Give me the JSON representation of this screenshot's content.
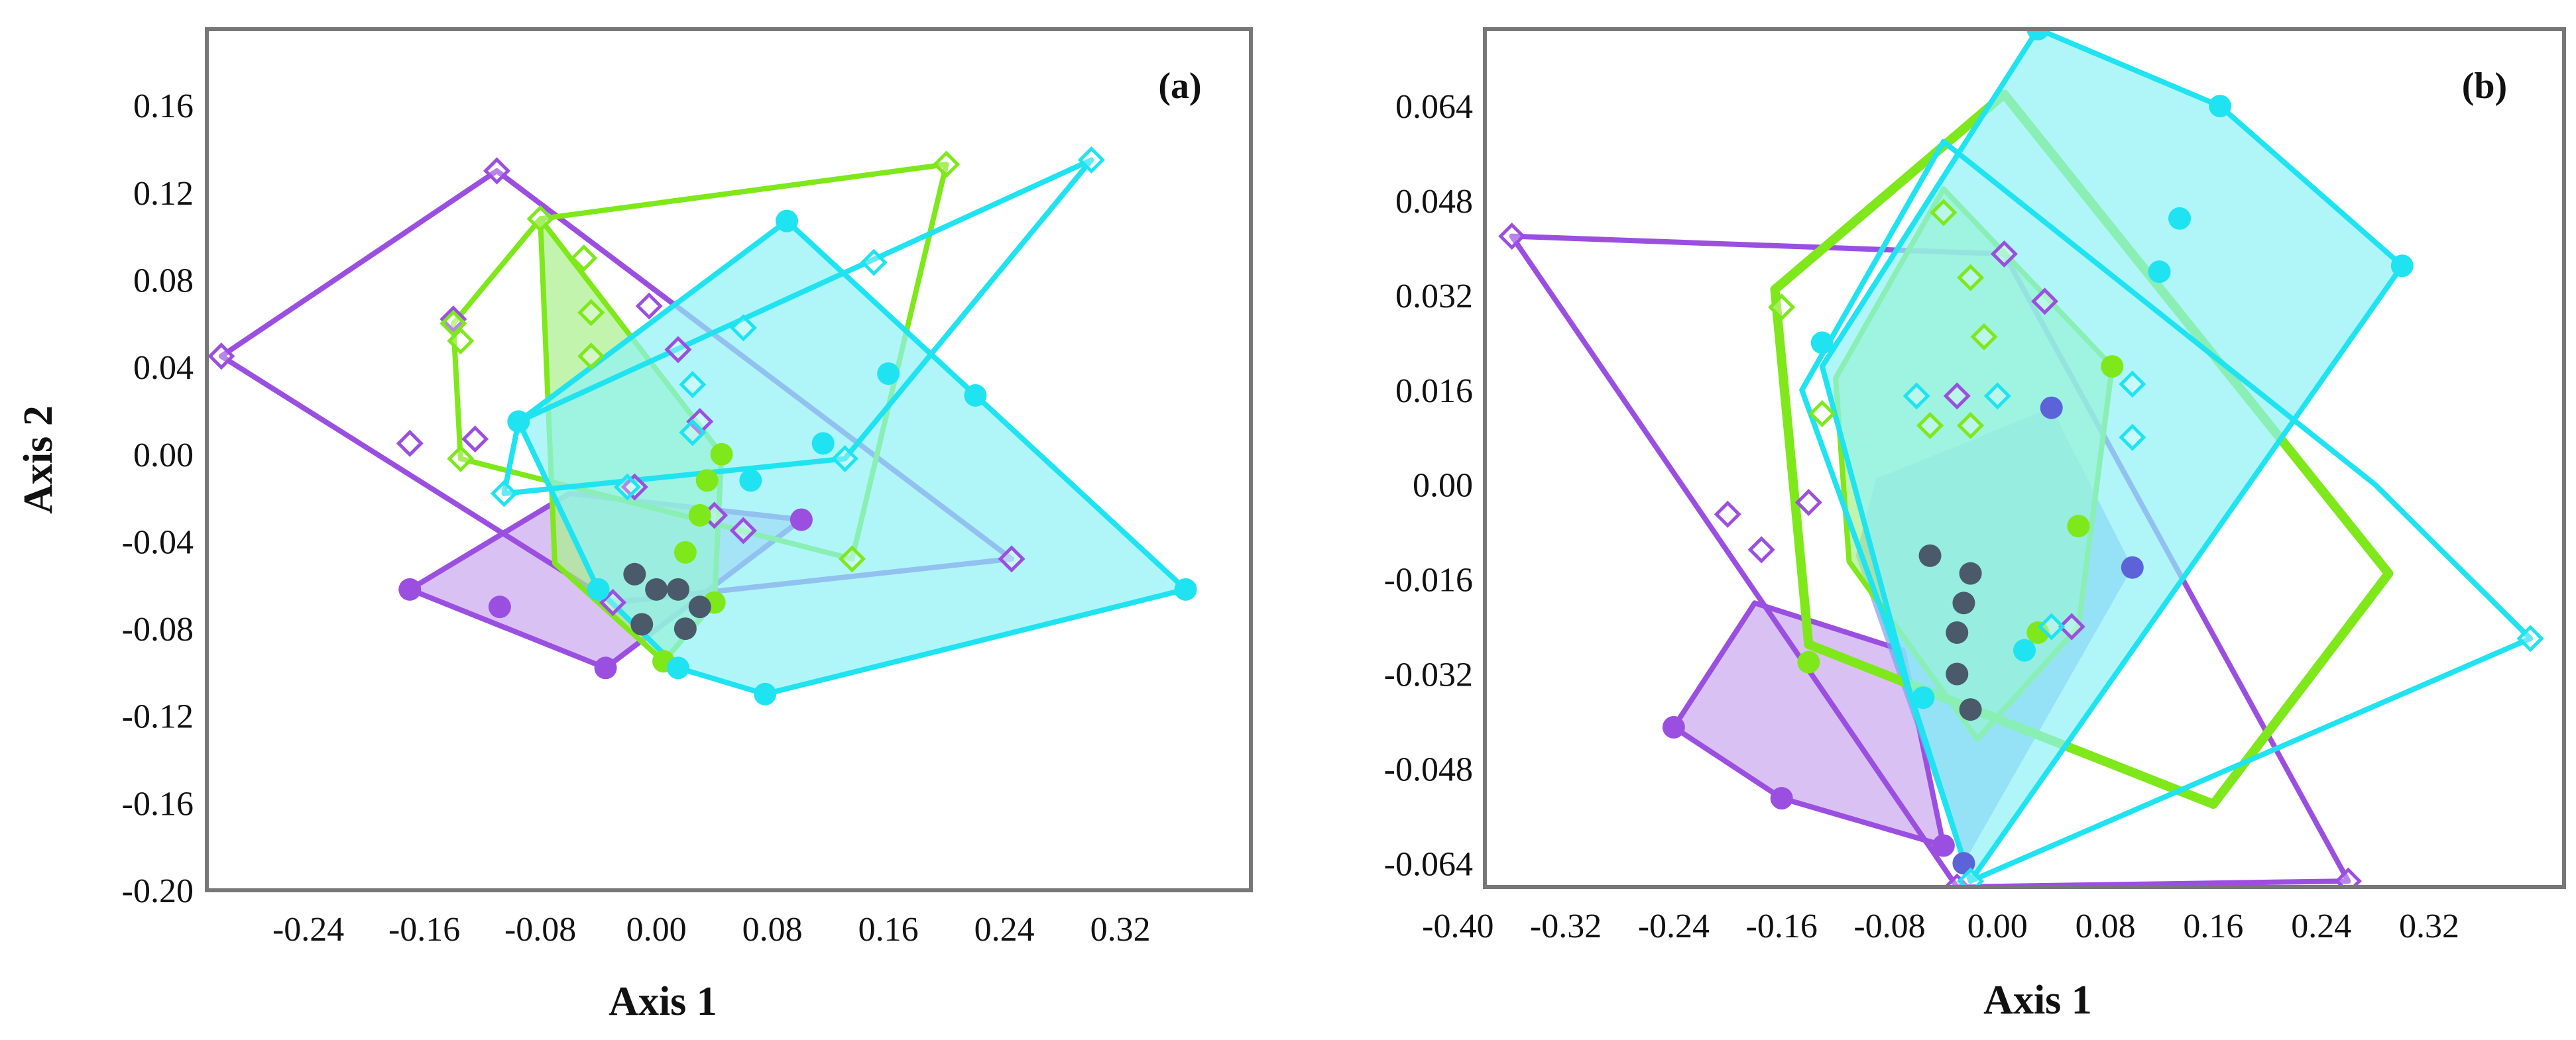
{
  "colors": {
    "purple": "#9b4fe0",
    "purple_fill": "#cba6f0",
    "green": "#7ee81a",
    "green_fill": "#a9ef8c",
    "cyan": "#1fe3f0",
    "cyan_fill": "#8ff2f7",
    "blue_fill": "#7f9ff0",
    "blue_point": "#5c63d8",
    "gray_point": "#4a5a6a"
  },
  "chart_data": [
    {
      "type": "scatter",
      "panel_label": "(a)",
      "xlabel": "Axis 1",
      "ylabel": "Axis 2",
      "xlim": [
        -0.31,
        0.41
      ],
      "ylim": [
        -0.2,
        0.195
      ],
      "xticks": [
        -0.24,
        -0.16,
        -0.08,
        0.0,
        0.08,
        0.16,
        0.24,
        0.32
      ],
      "xtick_labels": [
        "-0.24",
        "-0.16",
        "-0.08",
        "0.00",
        "0.08",
        "0.16",
        "0.24",
        "0.32"
      ],
      "yticks": [
        -0.2,
        -0.16,
        -0.12,
        -0.08,
        -0.04,
        0.0,
        0.04,
        0.08,
        0.12,
        0.16
      ],
      "ytick_labels": [
        "-0.20",
        "-0.16",
        "-0.12",
        "-0.08",
        "-0.04",
        "0.00",
        "0.04",
        "0.08",
        "0.12",
        "0.16"
      ],
      "series": [
        {
          "color": "purple",
          "fill": "purple_fill",
          "filled": true,
          "marker": "circle",
          "stroke_width": 8,
          "hull": [
            [
              -0.17,
              -0.062
            ],
            [
              -0.035,
              -0.098
            ],
            [
              0.1,
              -0.03
            ],
            [
              -0.06,
              -0.018
            ]
          ],
          "points": [
            [
              -0.17,
              -0.062
            ],
            [
              -0.108,
              -0.07
            ],
            [
              -0.035,
              -0.098
            ],
            [
              0.1,
              -0.03
            ]
          ]
        },
        {
          "color": "purple",
          "filled": false,
          "marker": "diamond",
          "stroke_width": 8,
          "hull": [
            [
              -0.3,
              0.045
            ],
            [
              -0.11,
              0.13
            ],
            [
              0.245,
              -0.048
            ],
            [
              -0.03,
              -0.068
            ]
          ],
          "points": [
            [
              -0.3,
              0.045
            ],
            [
              -0.11,
              0.13
            ],
            [
              0.245,
              -0.048
            ],
            [
              -0.03,
              -0.068
            ],
            [
              -0.17,
              0.005
            ],
            [
              -0.125,
              0.007
            ],
            [
              -0.14,
              0.062
            ],
            [
              0.015,
              0.048
            ],
            [
              -0.005,
              0.068
            ],
            [
              0.03,
              0.015
            ],
            [
              -0.015,
              -0.015
            ],
            [
              0.04,
              -0.028
            ],
            [
              0.06,
              -0.035
            ]
          ]
        },
        {
          "color": "green",
          "fill": "green_fill",
          "filled": true,
          "marker": "circle",
          "stroke_width": 8,
          "hull": [
            [
              -0.08,
              0.108
            ],
            [
              0.045,
              0.0
            ],
            [
              0.04,
              -0.068
            ],
            [
              0.005,
              -0.095
            ],
            [
              -0.07,
              -0.05
            ]
          ],
          "points": [
            [
              0.045,
              0.0
            ],
            [
              0.04,
              -0.068
            ],
            [
              0.005,
              -0.095
            ],
            [
              0.03,
              -0.028
            ],
            [
              0.02,
              -0.045
            ],
            [
              0.035,
              -0.012
            ]
          ]
        },
        {
          "color": "green",
          "filled": false,
          "marker": "diamond",
          "stroke_width": 8,
          "hull": [
            [
              -0.08,
              0.108
            ],
            [
              0.2,
              0.133
            ],
            [
              0.135,
              -0.048
            ],
            [
              -0.135,
              -0.002
            ],
            [
              -0.14,
              0.06
            ]
          ],
          "points": [
            [
              -0.08,
              0.108
            ],
            [
              0.2,
              0.133
            ],
            [
              0.135,
              -0.048
            ],
            [
              -0.135,
              -0.002
            ],
            [
              -0.14,
              0.06
            ],
            [
              -0.045,
              0.065
            ],
            [
              -0.045,
              0.045
            ],
            [
              -0.05,
              0.09
            ],
            [
              -0.135,
              0.052
            ]
          ]
        },
        {
          "color": "cyan",
          "fill": "cyan_fill",
          "filled": true,
          "marker": "circle",
          "stroke_width": 8,
          "hull": [
            [
              -0.095,
              0.015
            ],
            [
              0.09,
              0.107
            ],
            [
              0.365,
              -0.062
            ],
            [
              0.075,
              -0.11
            ],
            [
              0.015,
              -0.098
            ],
            [
              -0.04,
              -0.062
            ]
          ],
          "points": [
            [
              -0.095,
              0.015
            ],
            [
              0.09,
              0.107
            ],
            [
              0.365,
              -0.062
            ],
            [
              0.075,
              -0.11
            ],
            [
              0.015,
              -0.098
            ],
            [
              -0.04,
              -0.062
            ],
            [
              0.22,
              0.027
            ],
            [
              0.16,
              0.037
            ],
            [
              0.115,
              0.005
            ],
            [
              0.065,
              -0.012
            ]
          ]
        },
        {
          "color": "cyan",
          "filled": false,
          "marker": "diamond",
          "stroke_width": 8,
          "hull": [
            [
              0.3,
              0.135
            ],
            [
              0.13,
              -0.002
            ],
            [
              -0.105,
              -0.018
            ],
            [
              -0.095,
              0.015
            ]
          ],
          "points": [
            [
              0.3,
              0.135
            ],
            [
              0.13,
              -0.002
            ],
            [
              -0.105,
              -0.018
            ],
            [
              0.15,
              0.088
            ],
            [
              0.06,
              0.058
            ],
            [
              0.025,
              0.032
            ],
            [
              0.025,
              0.01
            ],
            [
              -0.02,
              -0.015
            ]
          ]
        },
        {
          "color": "gray_point",
          "filled": false,
          "marker": "circle",
          "stroke_width": 0,
          "hull": [],
          "points": [
            [
              -0.015,
              -0.055
            ],
            [
              0.0,
              -0.062
            ],
            [
              0.015,
              -0.062
            ],
            [
              -0.01,
              -0.078
            ],
            [
              0.02,
              -0.08
            ],
            [
              0.03,
              -0.07
            ]
          ]
        }
      ]
    },
    {
      "type": "scatter",
      "panel_label": "(b)",
      "xlabel": "Axis 1",
      "ylabel": "",
      "xlim": [
        -0.38,
        0.42
      ],
      "ylim": [
        -0.068,
        0.077
      ],
      "xticks": [
        -0.4,
        -0.32,
        -0.24,
        -0.16,
        -0.08,
        0.0,
        0.08,
        0.16,
        0.24,
        0.32
      ],
      "xtick_labels": [
        "-0.40",
        "-0.32",
        "-0.24",
        "-0.16",
        "-0.08",
        "0.00",
        "0.08",
        "0.16",
        "0.24",
        "0.32"
      ],
      "yticks": [
        -0.064,
        -0.048,
        -0.032,
        -0.016,
        0.0,
        0.016,
        0.032,
        0.048,
        0.064
      ],
      "ytick_labels": [
        "-0.064",
        "-0.048",
        "-0.032",
        "-0.016",
        "0.00",
        "0.016",
        "0.032",
        "0.048",
        "0.064"
      ],
      "series": [
        {
          "color": "purple",
          "fill": "purple_fill",
          "filled": true,
          "marker": "circle",
          "stroke_width": 8,
          "hull": [
            [
              -0.24,
              -0.041
            ],
            [
              -0.16,
              -0.053
            ],
            [
              -0.04,
              -0.061
            ],
            [
              -0.07,
              -0.028
            ],
            [
              -0.18,
              -0.02
            ]
          ],
          "points": [
            [
              -0.24,
              -0.041
            ],
            [
              -0.16,
              -0.053
            ],
            [
              -0.04,
              -0.061
            ]
          ]
        },
        {
          "color": "purple",
          "filled": false,
          "marker": "diamond",
          "stroke_width": 8,
          "hull": [
            [
              -0.36,
              0.042
            ],
            [
              0.005,
              0.039
            ],
            [
              0.26,
              -0.067
            ],
            [
              -0.03,
              -0.068
            ]
          ],
          "points": [
            [
              -0.36,
              0.042
            ],
            [
              0.005,
              0.039
            ],
            [
              0.26,
              -0.067
            ],
            [
              -0.03,
              -0.068
            ],
            [
              -0.2,
              -0.005
            ],
            [
              -0.175,
              -0.011
            ],
            [
              -0.14,
              -0.003
            ],
            [
              0.035,
              0.031
            ],
            [
              -0.03,
              0.015
            ],
            [
              0.055,
              -0.024
            ]
          ]
        },
        {
          "color": "blue_point",
          "fill": "blue_fill",
          "filled": true,
          "marker": "circle",
          "stroke_width": 0,
          "hull": [
            [
              -0.09,
              0.001
            ],
            [
              0.04,
              0.013
            ],
            [
              0.1,
              -0.014
            ],
            [
              -0.025,
              -0.064
            ],
            [
              -0.105,
              -0.012
            ]
          ],
          "points": [
            [
              0.04,
              0.013
            ],
            [
              0.1,
              -0.014
            ],
            [
              -0.025,
              -0.064
            ]
          ]
        },
        {
          "color": "green",
          "fill": "green_fill",
          "filled": true,
          "marker": "circle",
          "stroke_width": 8,
          "hull": [
            [
              -0.04,
              0.05
            ],
            [
              0.085,
              0.02
            ],
            [
              0.06,
              -0.024
            ],
            [
              -0.015,
              -0.043
            ],
            [
              -0.11,
              -0.013
            ],
            [
              -0.12,
              0.018
            ]
          ],
          "points": [
            [
              0.085,
              0.02
            ],
            [
              0.06,
              -0.007
            ],
            [
              0.03,
              -0.025
            ],
            [
              -0.14,
              -0.03
            ]
          ]
        },
        {
          "color": "green",
          "filled": false,
          "marker": "diamond",
          "stroke_width": 14,
          "hull": [
            [
              0.005,
              0.066
            ],
            [
              0.29,
              -0.015
            ],
            [
              0.16,
              -0.054
            ],
            [
              -0.14,
              -0.027
            ],
            [
              -0.165,
              0.033
            ]
          ],
          "points": [
            [
              -0.04,
              0.046
            ],
            [
              -0.02,
              0.035
            ],
            [
              -0.01,
              0.025
            ],
            [
              -0.02,
              0.01
            ],
            [
              -0.05,
              0.01
            ],
            [
              -0.13,
              0.012
            ],
            [
              -0.16,
              0.03
            ]
          ]
        },
        {
          "color": "cyan",
          "fill": "cyan_fill",
          "filled": true,
          "marker": "circle",
          "stroke_width": 8,
          "hull": [
            [
              0.03,
              0.077
            ],
            [
              0.165,
              0.064
            ],
            [
              0.3,
              0.037
            ],
            [
              -0.02,
              -0.067
            ],
            [
              -0.065,
              -0.035
            ],
            [
              -0.13,
              0.02
            ]
          ],
          "points": [
            [
              0.03,
              0.077
            ],
            [
              0.165,
              0.064
            ],
            [
              0.3,
              0.037
            ],
            [
              0.135,
              0.045
            ],
            [
              0.12,
              0.036
            ],
            [
              -0.13,
              0.024
            ],
            [
              0.02,
              -0.028
            ],
            [
              -0.055,
              -0.036
            ]
          ]
        },
        {
          "color": "cyan",
          "filled": false,
          "marker": "diamond",
          "stroke_width": 8,
          "hull": [
            [
              -0.04,
              0.058
            ],
            [
              0.28,
              0.0
            ],
            [
              0.395,
              -0.026
            ],
            [
              -0.02,
              -0.067
            ],
            [
              -0.08,
              -0.025
            ],
            [
              -0.145,
              0.016
            ]
          ],
          "points": [
            [
              0.395,
              -0.026
            ],
            [
              -0.02,
              -0.067
            ],
            [
              0.1,
              0.017
            ],
            [
              0.1,
              0.008
            ],
            [
              0.04,
              -0.024
            ],
            [
              -0.06,
              0.015
            ],
            [
              0.0,
              0.015
            ]
          ]
        },
        {
          "color": "gray_point",
          "filled": false,
          "marker": "circle",
          "stroke_width": 0,
          "hull": [],
          "points": [
            [
              -0.02,
              -0.015
            ],
            [
              -0.025,
              -0.02
            ],
            [
              -0.03,
              -0.025
            ],
            [
              -0.03,
              -0.032
            ],
            [
              -0.02,
              -0.038
            ],
            [
              -0.05,
              -0.012
            ]
          ]
        }
      ]
    }
  ]
}
